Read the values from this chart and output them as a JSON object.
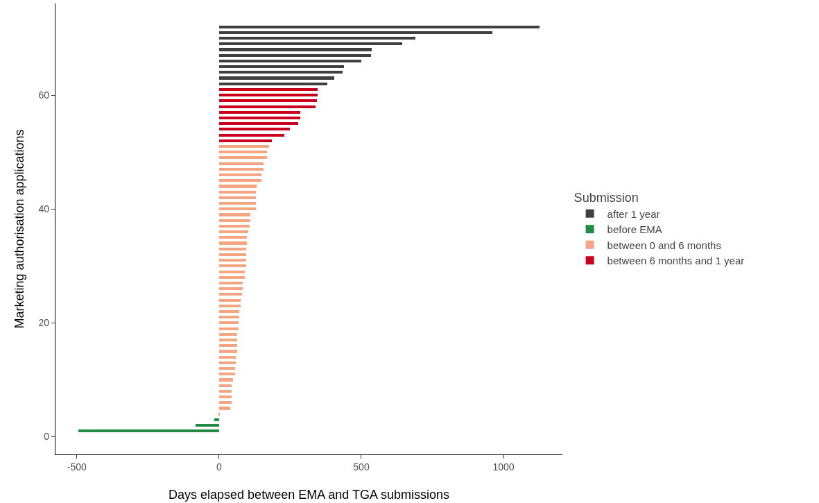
{
  "chart_data": {
    "type": "bar",
    "orientation": "horizontal",
    "xlabel": "Days elapsed between EMA and TGA submissions",
    "ylabel": "Marketing authorisation applications",
    "legend_title": "Submission",
    "legend": "right",
    "grid": false,
    "xlim": [
      -575,
      1207
    ],
    "xticks": [
      -500,
      0,
      500,
      1000
    ],
    "ylim": [
      -3.1,
      76.1
    ],
    "yticks": [
      0,
      20,
      40,
      60
    ],
    "series": [
      {
        "name": "after 1 year",
        "color": "#404040",
        "x": [
          62,
          63,
          64,
          65,
          66,
          67,
          68,
          69,
          70,
          71,
          72
        ],
        "values": [
          380,
          405,
          434,
          439,
          499,
          533,
          537,
          645,
          691,
          960,
          1126
        ]
      },
      {
        "name": "before EMA",
        "color": "#238b45",
        "x": [
          1,
          2,
          3
        ],
        "values": [
          -494,
          -83,
          -17
        ]
      },
      {
        "name": "between 0 and 6 months",
        "color": "#f4a582",
        "x": [
          4,
          5,
          6,
          7,
          8,
          9,
          10,
          11,
          12,
          13,
          14,
          15,
          16,
          17,
          18,
          19,
          20,
          21,
          22,
          23,
          24,
          25,
          26,
          27,
          28,
          29,
          30,
          31,
          32,
          33,
          34,
          35,
          36,
          37,
          38,
          39,
          40,
          41,
          42,
          43,
          44,
          45,
          46,
          47,
          48,
          49,
          50,
          51
        ],
        "values": [
          3,
          40,
          44,
          44,
          44,
          44,
          48,
          56,
          56,
          60,
          60,
          64,
          64,
          64,
          64,
          68,
          68,
          72,
          72,
          76,
          76,
          80,
          83,
          83,
          91,
          91,
          95,
          95,
          95,
          95,
          99,
          99,
          103,
          107,
          111,
          111,
          129,
          129,
          129,
          129,
          131,
          149,
          149,
          157,
          157,
          169,
          169,
          176
        ]
      },
      {
        "name": "between 6 months and 1 year",
        "color": "#ca0020",
        "x": [
          52,
          53,
          54,
          55,
          56,
          57,
          58,
          59,
          60,
          61
        ],
        "values": [
          185,
          230,
          248,
          277,
          285,
          285,
          339,
          343,
          347,
          347
        ]
      }
    ]
  }
}
